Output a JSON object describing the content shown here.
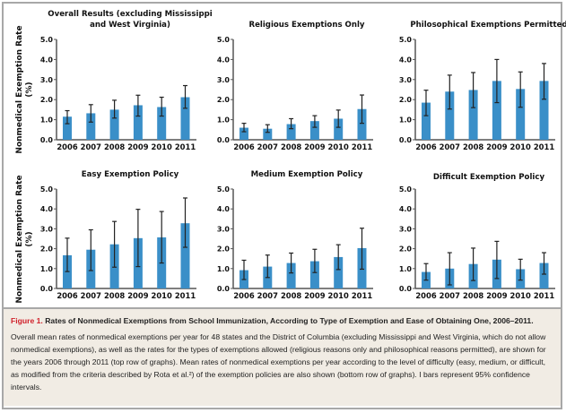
{
  "y_label_line1": "Nonmedical Exemption Rate",
  "y_label_line2": "(%)",
  "bar_color": "#3a8fc8",
  "chart_data": [
    {
      "type": "bar",
      "title": [
        "Overall Results (excluding Mississippi",
        "and West Virginia)"
      ],
      "categories": [
        "2006",
        "2007",
        "2008",
        "2009",
        "2010",
        "2011"
      ],
      "values": [
        1.15,
        1.32,
        1.5,
        1.72,
        1.63,
        2.12
      ],
      "ci_low": [
        0.8,
        0.88,
        1.08,
        1.18,
        1.18,
        1.57
      ],
      "ci_high": [
        1.45,
        1.75,
        1.97,
        2.22,
        2.12,
        2.7
      ],
      "ylim": [
        0,
        5
      ],
      "yticks": [
        "0.0",
        "1.0",
        "2.0",
        "3.0",
        "4.0",
        "5.0"
      ]
    },
    {
      "type": "bar",
      "title": [
        "Religious Exemptions Only"
      ],
      "categories": [
        "2006",
        "2007",
        "2008",
        "2009",
        "2010",
        "2011"
      ],
      "values": [
        0.6,
        0.55,
        0.78,
        0.93,
        1.05,
        1.53
      ],
      "ci_low": [
        0.4,
        0.37,
        0.55,
        0.62,
        0.62,
        0.82
      ],
      "ci_high": [
        0.82,
        0.75,
        1.05,
        1.2,
        1.48,
        2.23
      ],
      "ylim": [
        0,
        5
      ],
      "yticks": [
        "0.0",
        "1.0",
        "2.0",
        "3.0",
        "4.0",
        "5.0"
      ]
    },
    {
      "type": "bar",
      "title": [
        "Philosophical Exemptions Permitted"
      ],
      "categories": [
        "2006",
        "2007",
        "2008",
        "2009",
        "2010",
        "2011"
      ],
      "values": [
        1.85,
        2.4,
        2.48,
        2.93,
        2.53,
        2.93
      ],
      "ci_low": [
        1.2,
        1.53,
        1.6,
        1.85,
        1.62,
        2.02
      ],
      "ci_high": [
        2.47,
        3.22,
        3.35,
        4.0,
        3.38,
        3.8
      ],
      "ylim": [
        0,
        5
      ],
      "yticks": [
        "0.0",
        "1.0",
        "2.0",
        "3.0",
        "4.0",
        "5.0"
      ]
    },
    {
      "type": "bar",
      "title": [
        "Easy Exemption Policy"
      ],
      "categories": [
        "2006",
        "2007",
        "2008",
        "2009",
        "2010",
        "2011"
      ],
      "values": [
        1.67,
        1.95,
        2.22,
        2.53,
        2.57,
        3.28
      ],
      "ci_low": [
        0.85,
        0.9,
        1.07,
        1.1,
        1.28,
        2.07
      ],
      "ci_high": [
        2.53,
        2.95,
        3.37,
        3.98,
        3.87,
        4.55
      ],
      "ylim": [
        0,
        5
      ],
      "yticks": [
        "0.0",
        "1.0",
        "2.0",
        "3.0",
        "4.0",
        "5.0"
      ]
    },
    {
      "type": "bar",
      "title": [
        "Medium Exemption Policy"
      ],
      "categories": [
        "2006",
        "2007",
        "2008",
        "2009",
        "2010",
        "2011"
      ],
      "values": [
        0.92,
        1.1,
        1.28,
        1.37,
        1.58,
        2.03
      ],
      "ci_low": [
        0.45,
        0.55,
        0.78,
        0.8,
        0.95,
        0.97
      ],
      "ci_high": [
        1.42,
        1.68,
        1.78,
        1.97,
        2.2,
        3.03
      ],
      "ylim": [
        0,
        5
      ],
      "yticks": [
        "0.0",
        "1.0",
        "2.0",
        "3.0",
        "4.0",
        "5.0"
      ]
    },
    {
      "type": "bar",
      "title": [
        "Difficult Exemption Policy"
      ],
      "categories": [
        "2006",
        "2007",
        "2008",
        "2009",
        "2010",
        "2011"
      ],
      "values": [
        0.83,
        1.0,
        1.23,
        1.45,
        0.97,
        1.28
      ],
      "ci_low": [
        0.42,
        0.18,
        0.4,
        0.5,
        0.42,
        0.72
      ],
      "ci_high": [
        1.25,
        1.8,
        2.03,
        2.37,
        1.47,
        1.8
      ],
      "ylim": [
        0,
        5
      ],
      "yticks": [
        "0.0",
        "1.0",
        "2.0",
        "3.0",
        "4.0",
        "5.0"
      ]
    }
  ],
  "caption": {
    "label": "Figure 1.",
    "title": "Rates of Nonmedical Exemptions from School Immunization, According to Type of Exemption and Ease of Obtaining One, 2006–2011.",
    "body": "Overall mean rates of nonmedical exemptions per year for 48 states and the District of Columbia (excluding Mississippi and West Virginia, which do not allow nonmedical exemptions), as well as the rates for the types of exemptions allowed (religious reasons only and philosophical reasons permitted), are shown for the years 2006 through 2011 (top row of graphs). Mean rates of nonmedical exemptions per year according to the level of difficulty (easy, medium, or difficult, as modified from the criteria described by Rota et al.²) of the exemption policies are also shown (bottom row of graphs). I bars represent 95% confidence intervals."
  }
}
